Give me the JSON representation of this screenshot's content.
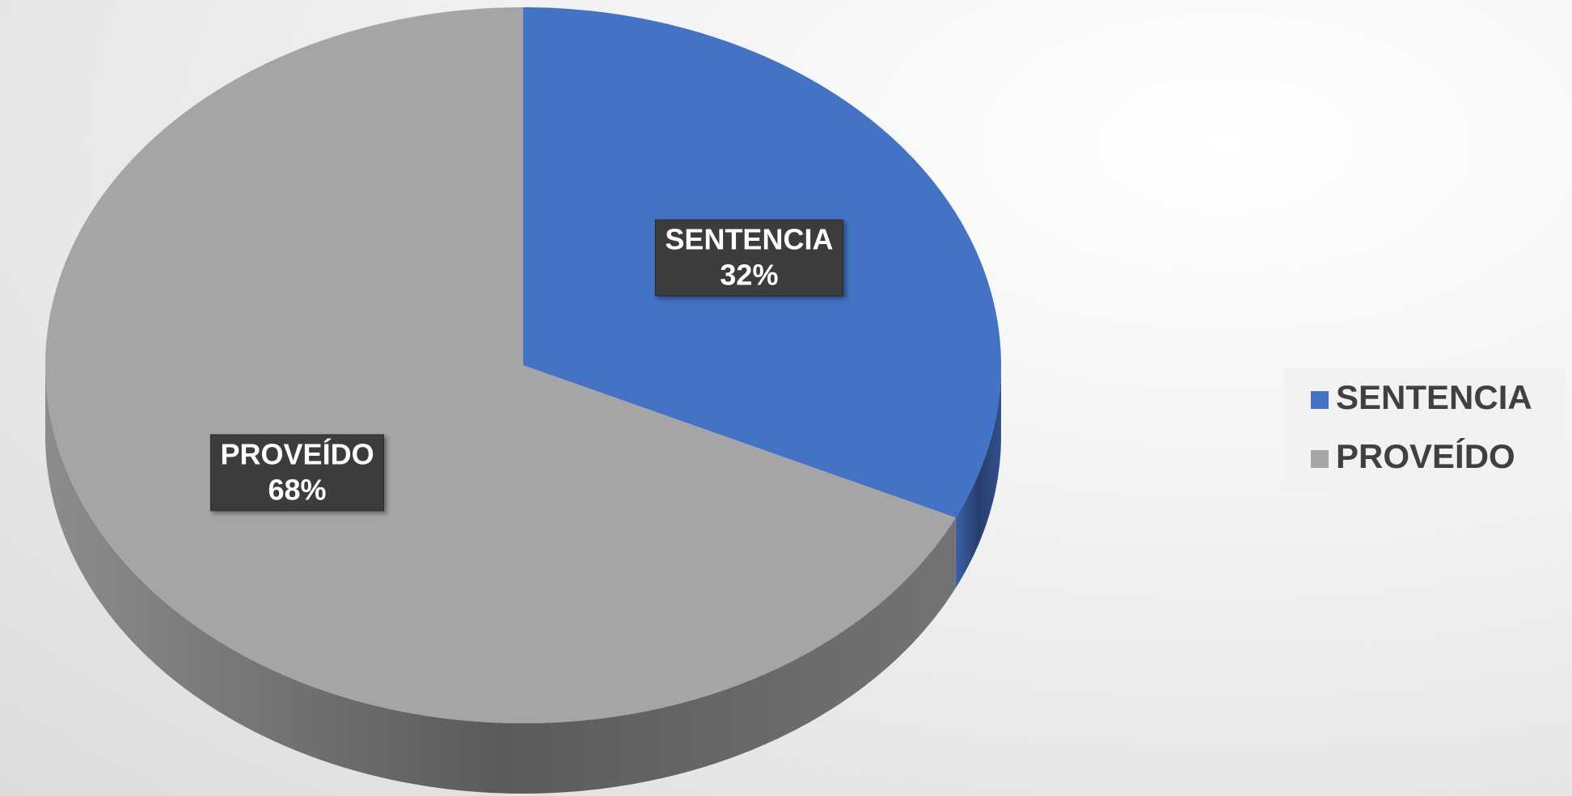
{
  "chart_data": {
    "type": "pie",
    "categories": [
      "SENTENCIA",
      "PROVEÍDO"
    ],
    "values": [
      32,
      68
    ],
    "value_labels": [
      "32%",
      "68%"
    ],
    "colors": [
      "#4472c4",
      "#a5a5a5"
    ],
    "legend": "right"
  }
}
